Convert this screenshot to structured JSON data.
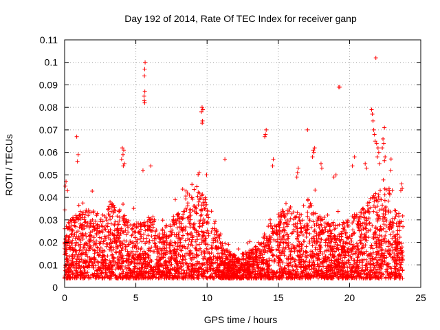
{
  "chart_data": {
    "type": "scatter",
    "title": "Day 192 of 2014, Rate Of TEC Index for receiver ganp",
    "xlabel": "GPS time / hours",
    "ylabel": "ROTI / TECUs",
    "xlim": [
      0,
      25
    ],
    "ylim": [
      0,
      0.11
    ],
    "x_ticks": [
      0,
      5,
      10,
      15,
      20,
      25
    ],
    "x_tick_labels": [
      "0",
      "5",
      "10",
      "15",
      "20",
      "25"
    ],
    "y_ticks": [
      0,
      0.01,
      0.02,
      0.03,
      0.04,
      0.05,
      0.06,
      0.07,
      0.08,
      0.09,
      0.1,
      0.11
    ],
    "y_tick_labels": [
      "0",
      "0.01",
      "0.02",
      "0.03",
      "0.04",
      "0.05",
      "0.06",
      "0.07",
      "0.08",
      "0.09",
      "0.1",
      "0.11"
    ],
    "grid": true,
    "marker": "+",
    "color": "#ff0000",
    "data_range_x": [
      0,
      23.75
    ],
    "bulk_band": {
      "min": 0.004,
      "typical_max": 0.035
    },
    "series": [
      {
        "name": "ROTI",
        "points": [
          [
            5.65,
            0.1
          ],
          [
            5.62,
            0.097
          ],
          [
            5.6,
            0.094
          ],
          [
            5.63,
            0.087
          ],
          [
            5.58,
            0.085
          ],
          [
            5.6,
            0.083
          ],
          [
            5.62,
            0.082
          ],
          [
            21.85,
            0.102
          ],
          [
            19.25,
            0.089
          ],
          [
            19.32,
            0.089
          ],
          [
            9.65,
            0.08
          ],
          [
            9.7,
            0.079
          ],
          [
            9.6,
            0.078
          ],
          [
            9.68,
            0.074
          ],
          [
            9.66,
            0.073
          ],
          [
            21.55,
            0.079
          ],
          [
            21.6,
            0.077
          ],
          [
            21.65,
            0.074
          ],
          [
            21.7,
            0.07
          ],
          [
            21.75,
            0.068
          ],
          [
            21.8,
            0.065
          ],
          [
            22.45,
            0.071
          ],
          [
            22.35,
            0.066
          ],
          [
            22.4,
            0.064
          ],
          [
            22.3,
            0.062
          ],
          [
            22.5,
            0.058
          ],
          [
            21.9,
            0.064
          ],
          [
            22.0,
            0.062
          ],
          [
            22.05,
            0.06
          ],
          [
            21.95,
            0.058
          ],
          [
            22.1,
            0.055
          ],
          [
            17.05,
            0.07
          ],
          [
            14.15,
            0.07
          ],
          [
            14.1,
            0.068
          ],
          [
            14.05,
            0.067
          ],
          [
            0.85,
            0.067
          ],
          [
            0.95,
            0.059
          ],
          [
            0.9,
            0.056
          ],
          [
            4.05,
            0.062
          ],
          [
            4.15,
            0.061
          ],
          [
            4.1,
            0.059
          ],
          [
            4.0,
            0.057
          ],
          [
            4.2,
            0.055
          ],
          [
            4.12,
            0.054
          ],
          [
            6.05,
            0.054
          ],
          [
            5.5,
            0.052
          ],
          [
            9.45,
            0.051
          ],
          [
            11.25,
            0.057
          ],
          [
            14.65,
            0.057
          ],
          [
            14.6,
            0.054
          ],
          [
            17.55,
            0.062
          ],
          [
            17.45,
            0.061
          ],
          [
            17.5,
            0.06
          ],
          [
            17.4,
            0.058
          ],
          [
            18.0,
            0.055
          ],
          [
            18.05,
            0.053
          ],
          [
            20.35,
            0.058
          ],
          [
            20.2,
            0.054
          ],
          [
            21.1,
            0.055
          ],
          [
            21.2,
            0.053
          ],
          [
            22.9,
            0.052
          ],
          [
            0.1,
            0.047
          ],
          [
            0.05,
            0.045
          ],
          [
            0.2,
            0.043
          ],
          [
            16.4,
            0.053
          ],
          [
            16.35,
            0.051
          ],
          [
            16.3,
            0.049
          ],
          [
            23.65,
            0.046
          ],
          [
            23.7,
            0.044
          ],
          [
            23.6,
            0.043
          ],
          [
            19.05,
            0.05
          ],
          [
            18.9,
            0.049
          ]
        ]
      }
    ]
  }
}
